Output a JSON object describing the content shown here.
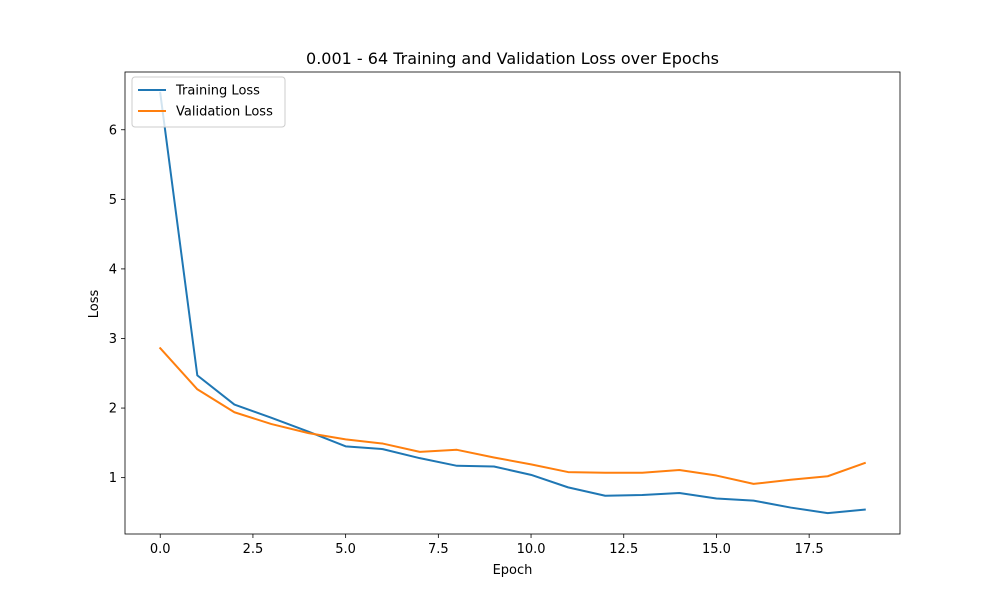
{
  "chart_data": {
    "type": "line",
    "title": "0.001 - 64 Training and Validation Loss over Epochs",
    "xlabel": "Epoch",
    "ylabel": "Loss",
    "xlim": [
      -0.95,
      19.95
    ],
    "ylim": [
      0.19,
      6.83
    ],
    "xticks": [
      0.0,
      2.5,
      5.0,
      7.5,
      10.0,
      12.5,
      15.0,
      17.5
    ],
    "xtick_labels": [
      "0.0",
      "2.5",
      "5.0",
      "7.5",
      "10.0",
      "12.5",
      "15.0",
      "17.5"
    ],
    "yticks": [
      1,
      2,
      3,
      4,
      5,
      6
    ],
    "ytick_labels": [
      "1",
      "2",
      "3",
      "4",
      "5",
      "6"
    ],
    "grid": false,
    "legend": "top-left",
    "x": [
      0,
      1,
      2,
      3,
      4,
      5,
      6,
      7,
      8,
      9,
      10,
      11,
      12,
      13,
      14,
      15,
      16,
      17,
      18,
      19
    ],
    "series": [
      {
        "name": "Training Loss",
        "color": "#1f77b4",
        "values": [
          6.53,
          2.47,
          2.05,
          1.86,
          1.66,
          1.45,
          1.41,
          1.28,
          1.17,
          1.16,
          1.04,
          0.86,
          0.74,
          0.75,
          0.78,
          0.7,
          0.67,
          0.57,
          0.49,
          0.54
        ]
      },
      {
        "name": "Validation Loss",
        "color": "#ff7f0e",
        "values": [
          2.86,
          2.27,
          1.94,
          1.77,
          1.64,
          1.55,
          1.49,
          1.37,
          1.4,
          1.29,
          1.19,
          1.08,
          1.07,
          1.07,
          1.11,
          1.03,
          0.91,
          0.97,
          1.02,
          1.21
        ]
      }
    ]
  }
}
